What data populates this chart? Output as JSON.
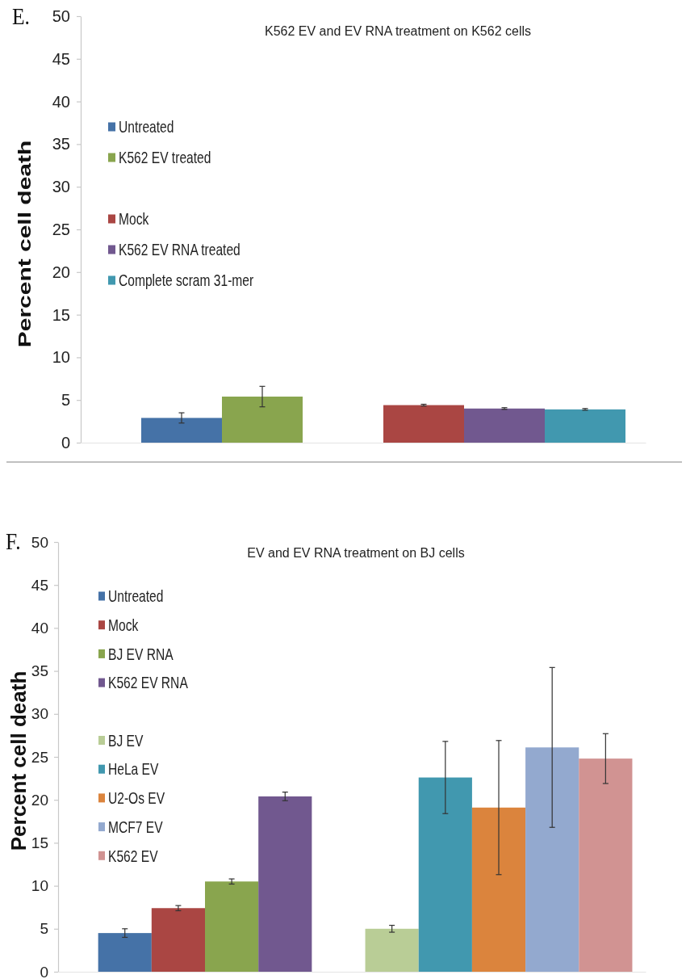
{
  "chart_data": [
    {
      "type": "bar",
      "title": "K562 EV and EV RNA treatment on K562 cells",
      "ylabel": "Percent cell death",
      "annotations": [
        "E."
      ],
      "categories": [
        null,
        null
      ],
      "ylim": [
        0,
        50
      ],
      "yticks": [
        0,
        5,
        10,
        15,
        20,
        25,
        30,
        35,
        40,
        45,
        50
      ],
      "legend": "top left",
      "series": [
        {
          "name": "Untreated",
          "color": "#4572a7",
          "values": [
            2.9,
            null
          ],
          "errors": [
            0.6,
            null
          ]
        },
        {
          "name": "K562 EV treated",
          "color": "#89a54e",
          "values": [
            5.4,
            null
          ],
          "errors": [
            1.2,
            null
          ]
        },
        {
          "name": "Mock",
          "color": "#aa4643",
          "values": [
            null,
            4.4
          ],
          "errors": [
            null,
            0.1
          ]
        },
        {
          "name": "K562 EV RNA treated",
          "color": "#71588f",
          "values": [
            null,
            4.0
          ],
          "errors": [
            null,
            0.1
          ]
        },
        {
          "name": "Complete scram 31-mer",
          "color": "#4198af",
          "values": [
            null,
            3.9
          ],
          "errors": [
            null,
            0.1
          ]
        }
      ]
    },
    {
      "type": "bar",
      "title": "EV and EV RNA treatment on BJ cells",
      "ylabel": "Percent cell death",
      "annotations": [
        "F."
      ],
      "categories": [
        null,
        null
      ],
      "ylim": [
        0,
        50
      ],
      "yticks": [
        0,
        5,
        10,
        15,
        20,
        25,
        30,
        35,
        40,
        45,
        50
      ],
      "legend": "top left",
      "series": [
        {
          "name": "Untreated",
          "color": "#4572a7",
          "values": [
            4.5,
            null
          ],
          "errors": [
            0.5,
            null
          ]
        },
        {
          "name": "Mock",
          "color": "#aa4643",
          "values": [
            7.4,
            null
          ],
          "errors": [
            0.3,
            null
          ]
        },
        {
          "name": "BJ EV RNA",
          "color": "#89a54e",
          "values": [
            10.5,
            null
          ],
          "errors": [
            0.3,
            null
          ]
        },
        {
          "name": "K562 EV RNA",
          "color": "#71588f",
          "values": [
            20.4,
            null
          ],
          "errors": [
            0.5,
            null
          ]
        },
        {
          "name": "BJ EV",
          "color": "#b9cd96",
          "values": [
            null,
            5.0
          ],
          "errors": [
            null,
            0.4
          ]
        },
        {
          "name": "HeLa EV",
          "color": "#4198af",
          "values": [
            null,
            22.6
          ],
          "errors": [
            null,
            4.2
          ]
        },
        {
          "name": "U2-Os EV",
          "color": "#db843d",
          "values": [
            null,
            19.1
          ],
          "errors": [
            null,
            7.8
          ]
        },
        {
          "name": "MCF7 EV",
          "color": "#93a9cf",
          "values": [
            null,
            26.1
          ],
          "errors": [
            null,
            9.3
          ]
        },
        {
          "name": "K562 EV",
          "color": "#d19392",
          "values": [
            null,
            24.8
          ],
          "errors": [
            null,
            2.9
          ]
        }
      ]
    }
  ]
}
